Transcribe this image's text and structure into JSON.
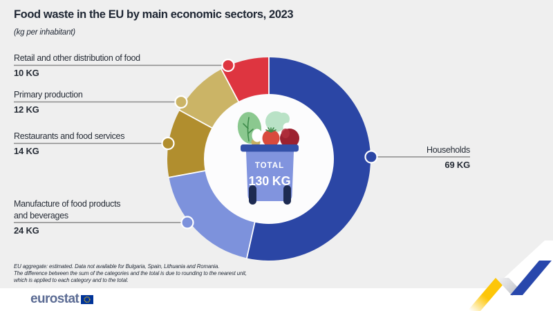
{
  "header": {
    "title": "Food waste in the EU by main economic sectors, 2023",
    "subtitle": "(kg per inhabitant)"
  },
  "chart_data": {
    "type": "pie",
    "variant": "donut",
    "title": "Food waste in the EU by main economic sectors, 2023",
    "unit": "kg per inhabitant",
    "start_angle_deg": 0,
    "direction": "clockwise",
    "legend_position": "callouts",
    "center_total": {
      "label": "TOTAL",
      "value": 130,
      "value_label": "130 KG"
    },
    "segments": [
      {
        "label": "Households",
        "value": 69,
        "value_label": "69 KG",
        "color": "#2B46A5"
      },
      {
        "label": "Manufacture of food products and beverages",
        "value": 24,
        "value_label": "24 KG",
        "color": "#7D92DC"
      },
      {
        "label": "Restaurants and food services",
        "value": 14,
        "value_label": "14 KG",
        "color": "#B18E2E"
      },
      {
        "label": "Primary production",
        "value": 12,
        "value_label": "12 KG",
        "color": "#CBB466"
      },
      {
        "label": "Retail and other distribution of food",
        "value": 10,
        "value_label": "10 KG",
        "color": "#DE3540"
      }
    ]
  },
  "footnotes": [
    "EU aggregate: estimated. Data not available for Bulgaria, Spain, Lithuania and Romania.",
    "The difference between the sum of the categories and the total is due to rounding to the nearest unit,",
    "which is applied to each category and to the total."
  ],
  "footer": {
    "brand": "eurostat"
  },
  "colors": {
    "background": "#EFEFEF",
    "footer_background": "#FFFFFF",
    "leader_line": "#8A8A8A",
    "donut_hole": "#FCFCFD",
    "bin_body": "#8194DE",
    "bin_lid": "#3350A8",
    "ribbon_yellow": "#FDC608",
    "ribbon_blue": "#2847AC",
    "eu_flag_blue": "#003399",
    "eu_flag_stars": "#FFCC00"
  }
}
